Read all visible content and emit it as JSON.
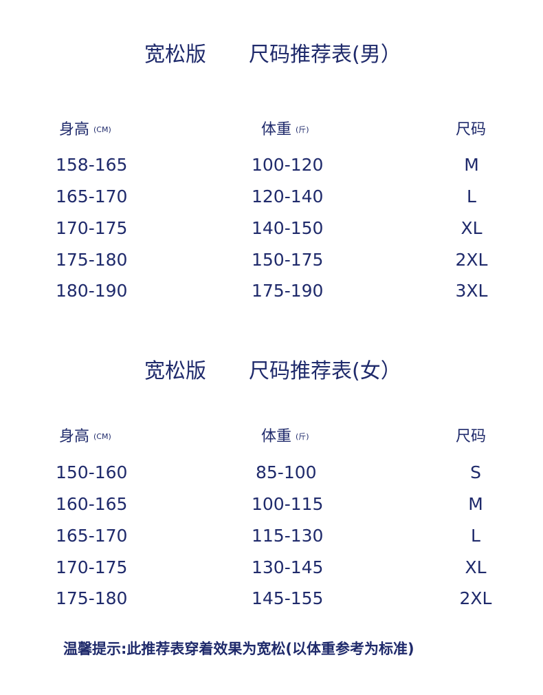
{
  "tables": [
    {
      "title_left": "宽松版",
      "title_right": "尺码推荐表(男）",
      "headers": {
        "height": "身高",
        "height_unit": "(CM)",
        "weight": "体重",
        "weight_unit": "(斤)",
        "size": "尺码"
      },
      "rows": [
        {
          "height": "158-165",
          "weight": "100-120",
          "size": "M"
        },
        {
          "height": "165-170",
          "weight": "120-140",
          "size": "L"
        },
        {
          "height": "170-175",
          "weight": "140-150",
          "size": "XL"
        },
        {
          "height": "175-180",
          "weight": "150-175",
          "size": "2XL"
        },
        {
          "height": "180-190",
          "weight": "175-190",
          "size": "3XL"
        }
      ]
    },
    {
      "title_left": "宽松版",
      "title_right": "尺码推荐表(女）",
      "headers": {
        "height": "身高",
        "height_unit": "(CM)",
        "weight": "体重",
        "weight_unit": "(斤)",
        "size": "尺码"
      },
      "rows": [
        {
          "height": "150-160",
          "weight": "85-100",
          "size": "S"
        },
        {
          "height": "160-165",
          "weight": "100-115",
          "size": "M"
        },
        {
          "height": "165-170",
          "weight": "115-130",
          "size": "L"
        },
        {
          "height": "170-175",
          "weight": "130-145",
          "size": "XL"
        },
        {
          "height": "175-180",
          "weight": "145-155",
          "size": "2XL"
        }
      ]
    }
  ],
  "note": "温馨提示:此推荐表穿着效果为宽松(以体重参考为标准)",
  "colors": {
    "text": "#1f2a6b",
    "background": "#ffffff"
  }
}
